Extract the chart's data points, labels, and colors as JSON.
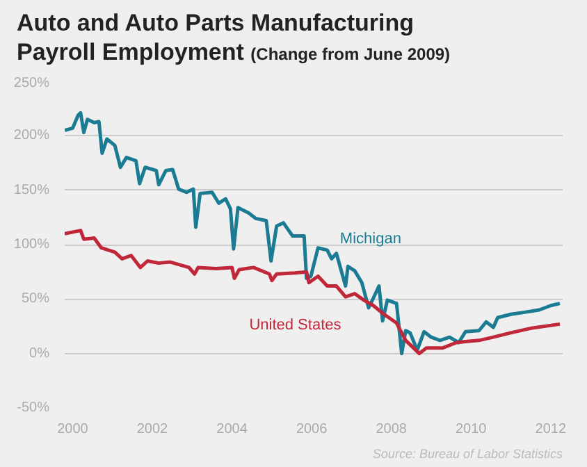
{
  "chart_data": {
    "type": "line",
    "title": "Auto and Auto Parts Manufacturing\nPayroll Employment",
    "subtitle": "(Change from June 2009)",
    "annotations": [
      "Source: Bureau of Labor Statistics"
    ],
    "xlim": [
      1999.8,
      2012.3
    ],
    "xticks": [
      2000,
      2002,
      2004,
      2006,
      2008,
      2010,
      2012
    ],
    "ylim": [
      -50,
      250
    ],
    "yticks": [
      {
        "value": 250,
        "label": "250%"
      },
      {
        "value": 200,
        "label": "200%"
      },
      {
        "value": 150,
        "label": "150%"
      },
      {
        "value": 100,
        "label": "100%"
      },
      {
        "value": 50,
        "label": "50%"
      },
      {
        "value": 0,
        "label": "0%"
      },
      {
        "value": -50,
        "label": "-50%"
      }
    ],
    "grid": "y",
    "legend": false,
    "series": [
      {
        "name": "Michigan",
        "color": "#1b7b93",
        "x": [
          1999.8,
          2000.0,
          2000.14,
          2000.2,
          2000.28,
          2000.37,
          2000.54,
          2000.66,
          2000.74,
          2000.86,
          2001.06,
          2001.2,
          2001.35,
          2001.59,
          2001.68,
          2001.82,
          2002.1,
          2002.16,
          2002.34,
          2002.51,
          2002.66,
          2002.86,
          2003.03,
          2003.09,
          2003.2,
          2003.5,
          2003.67,
          2003.84,
          2003.96,
          2004.04,
          2004.15,
          2004.42,
          2004.6,
          2004.86,
          2004.98,
          2005.12,
          2005.29,
          2005.52,
          2005.81,
          2005.87,
          2005.98,
          2006.16,
          2006.39,
          2006.5,
          2006.62,
          2006.85,
          2006.91,
          2007.08,
          2007.26,
          2007.43,
          2007.55,
          2007.69,
          2007.78,
          2007.9,
          2008.13,
          2008.26,
          2008.36,
          2008.47,
          2008.65,
          2008.82,
          2009.0,
          2009.22,
          2009.46,
          2009.69,
          2009.86,
          2010.2,
          2010.38,
          2010.56,
          2010.67,
          2011.0,
          2011.37,
          2011.71,
          2012.0,
          2012.23
        ],
        "values": [
          205,
          207,
          219,
          221,
          203,
          215,
          212,
          213,
          184,
          197,
          191,
          171,
          180,
          177,
          156,
          171,
          168,
          155,
          168,
          169,
          151,
          148,
          151,
          116,
          147,
          148,
          138,
          142,
          133,
          96,
          134,
          129,
          124,
          122,
          85,
          117,
          120,
          108,
          108,
          69,
          71,
          97,
          95,
          87,
          92,
          62,
          80,
          76,
          65,
          42,
          51,
          62,
          30,
          49,
          46,
          0,
          21,
          19,
          3,
          20,
          15,
          12,
          15,
          10,
          20,
          21,
          29,
          24,
          33,
          36,
          38,
          40,
          44,
          46
        ]
      },
      {
        "name": "United States",
        "color": "#c0283a",
        "x": [
          1999.8,
          2000.2,
          2000.28,
          2000.54,
          2000.72,
          2001.06,
          2001.24,
          2001.47,
          2001.7,
          2001.88,
          2002.16,
          2002.45,
          2002.92,
          2003.06,
          2003.15,
          2003.6,
          2004.0,
          2004.06,
          2004.18,
          2004.54,
          2004.94,
          2005.0,
          2005.12,
          2005.58,
          2005.87,
          2005.93,
          2006.16,
          2006.39,
          2006.62,
          2006.85,
          2007.08,
          2007.31,
          2007.55,
          2007.78,
          2008.13,
          2008.36,
          2008.7,
          2008.88,
          2009.28,
          2009.63,
          2009.86,
          2010.2,
          2010.56,
          2011.0,
          2011.48,
          2012.23
        ],
        "values": [
          110,
          113,
          105,
          106,
          97,
          93,
          87,
          90,
          79,
          85,
          83,
          84,
          79,
          73,
          79,
          78,
          79,
          69,
          77,
          79,
          73,
          67,
          73,
          74,
          75,
          65,
          71,
          62,
          62,
          52,
          55,
          49,
          44,
          37,
          28,
          12,
          0,
          5,
          5,
          10,
          11,
          12,
          15,
          19,
          23,
          27
        ]
      }
    ]
  }
}
